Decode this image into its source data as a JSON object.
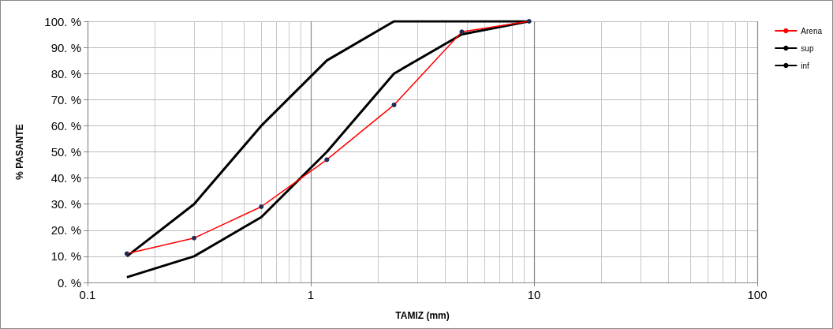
{
  "chart_data": {
    "type": "line",
    "xlabel": "TAMIZ (mm)",
    "ylabel": "% PASANTE",
    "log": "x",
    "grid": true,
    "legend": "top right",
    "xlim": [
      0.1,
      100
    ],
    "xticks": [
      0.1,
      1,
      10,
      100
    ],
    "ylim": [
      0,
      100
    ],
    "yticks": [
      {
        "value": 0,
        "label": "0. %"
      },
      {
        "value": 10,
        "label": "10. %"
      },
      {
        "value": 20,
        "label": "20. %"
      },
      {
        "value": 30,
        "label": "30. %"
      },
      {
        "value": 40,
        "label": "40. %"
      },
      {
        "value": 50,
        "label": "50. %"
      },
      {
        "value": 60,
        "label": "60. %"
      },
      {
        "value": 70,
        "label": "70. %"
      },
      {
        "value": 80,
        "label": "80. %"
      },
      {
        "value": 90,
        "label": "90. %"
      },
      {
        "value": 100,
        "label": "100. %"
      }
    ],
    "series": [
      {
        "name": "Arena",
        "color": "#ff0000",
        "marker": "circle",
        "x": [
          0.15,
          0.3,
          0.6,
          1.18,
          2.36,
          4.75,
          9.5
        ],
        "values": [
          11,
          17,
          29,
          47,
          68,
          96,
          100
        ]
      },
      {
        "name": "sup",
        "color": "#000000",
        "marker": "none",
        "x": [
          0.15,
          0.3,
          0.6,
          1.18,
          2.36,
          4.75,
          9.5
        ],
        "values": [
          10,
          30,
          60,
          85,
          100,
          100,
          100
        ]
      },
      {
        "name": "inf",
        "color": "#000000",
        "marker": "none",
        "x": [
          0.15,
          0.3,
          0.6,
          1.18,
          2.36,
          4.75,
          9.5
        ],
        "values": [
          2,
          10,
          25,
          50,
          80,
          95,
          100
        ]
      }
    ]
  }
}
